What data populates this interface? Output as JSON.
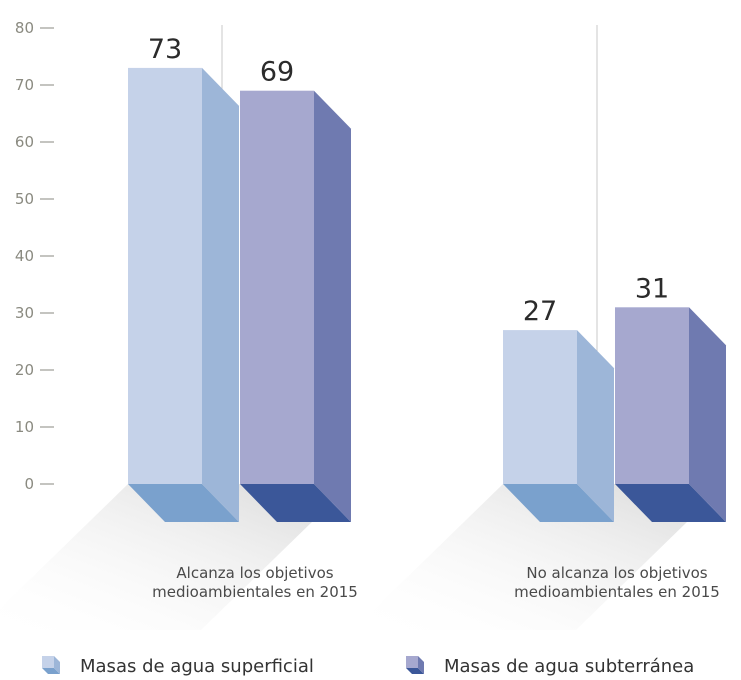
{
  "chart_data": {
    "type": "bar",
    "categories": [
      [
        "Alcanza los objetivos",
        "medioambientales en 2015"
      ],
      [
        "No alcanza los objetivos",
        "medioambientales en 2015"
      ]
    ],
    "series": [
      {
        "name": "Masas de agua superficial",
        "values": [
          73,
          27
        ],
        "colors": {
          "front": "#c5d2e9",
          "side": "#9db6d8",
          "bottom": "#7aa1cd"
        }
      },
      {
        "name": "Masas de agua subterránea",
        "values": [
          69,
          31
        ],
        "colors": {
          "front": "#a6a8cf",
          "side": "#6f7ab0",
          "bottom": "#3b5799"
        }
      }
    ],
    "yticks": [
      0,
      10,
      20,
      30,
      40,
      50,
      60,
      70,
      80
    ],
    "ylim": [
      0,
      80
    ],
    "grid": false,
    "legend_position": "bottom"
  }
}
